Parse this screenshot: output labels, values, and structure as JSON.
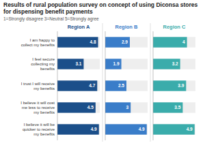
{
  "chart_data": {
    "type": "bar",
    "orientation": "horizontal",
    "title": "Results of rural population survey on concept of using Diconsa stores for dispensing benefit payments",
    "subtitle": "1=Strongly disagree  3=Neutral  5=Strongly agree",
    "categories": [
      "I am happy to\ncollect my benefits",
      "I feel secure\ncollecting my\nbenefits",
      "I trust I will receive\nmy benefits",
      "I believe it will cost\nme less to receive\nmy benefits",
      "I believe it will be\nquicker to receive\nmy benefits"
    ],
    "series": [
      {
        "name": "Region A",
        "color": "#1b4f8a",
        "values": [
          4.8,
          3.1,
          4.7,
          4.5,
          4.9
        ]
      },
      {
        "name": "Region B",
        "color": "#3a7dc9",
        "values": [
          2.9,
          1.9,
          2.5,
          3.0,
          4.9
        ]
      },
      {
        "name": "Region C",
        "color": "#3aacab",
        "values": [
          4.0,
          3.2,
          3.9,
          3.5,
          4.9
        ]
      }
    ],
    "xlim": [
      0,
      5.0
    ],
    "data_labels": true,
    "tick_labels": false,
    "grid": false
  }
}
